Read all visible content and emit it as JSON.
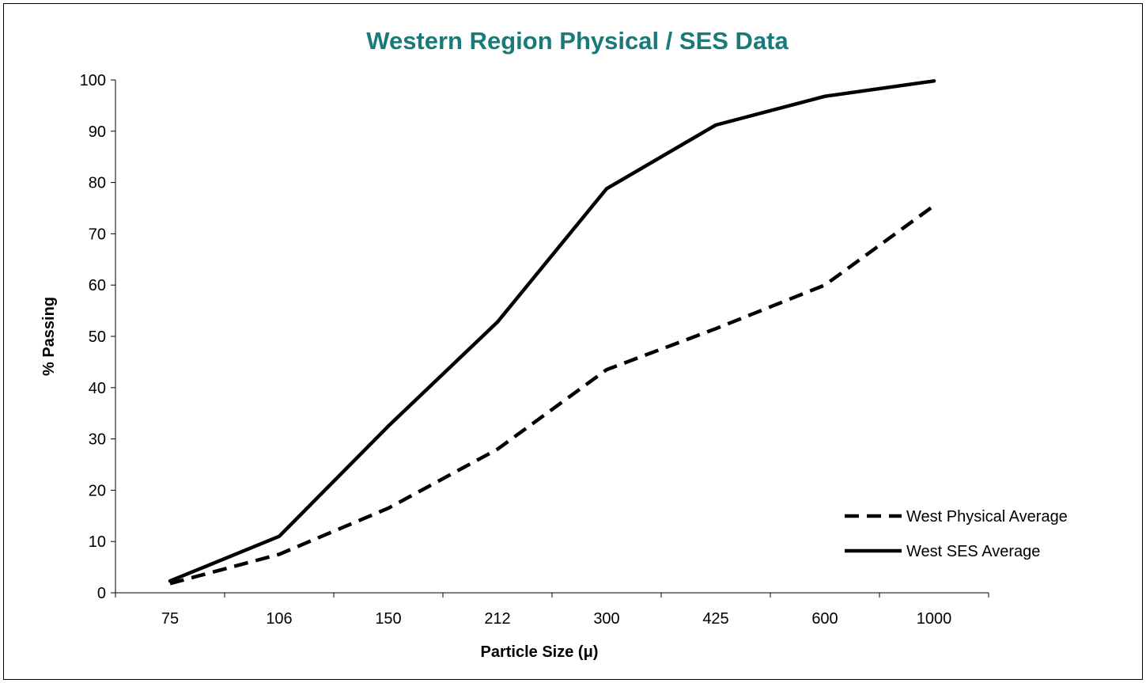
{
  "chart_data": {
    "type": "line",
    "title": "Western Region Physical / SES Data",
    "xlabel": "Particle Size (μ)",
    "ylabel": "% Passing",
    "categories": [
      "75",
      "106",
      "150",
      "212",
      "300",
      "425",
      "600",
      "1000"
    ],
    "ylim": [
      0,
      100
    ],
    "yticks": [
      0,
      10,
      20,
      30,
      40,
      50,
      60,
      70,
      80,
      90,
      100
    ],
    "grid": false,
    "legend_position": "bottom-right",
    "series": [
      {
        "name": "West Physical Average",
        "style": "dashed",
        "color": "#000000",
        "values": [
          1.8,
          7.5,
          16.5,
          28,
          43.5,
          51.5,
          60,
          75.5
        ]
      },
      {
        "name": "West SES Average",
        "style": "solid",
        "color": "#000000",
        "values": [
          2.3,
          11,
          32.5,
          52.8,
          78.8,
          91.2,
          96.8,
          99.8
        ]
      }
    ]
  },
  "colors": {
    "title": "#1a7a7a",
    "axis": "#000000",
    "frame": "#000000",
    "background": "#ffffff"
  }
}
